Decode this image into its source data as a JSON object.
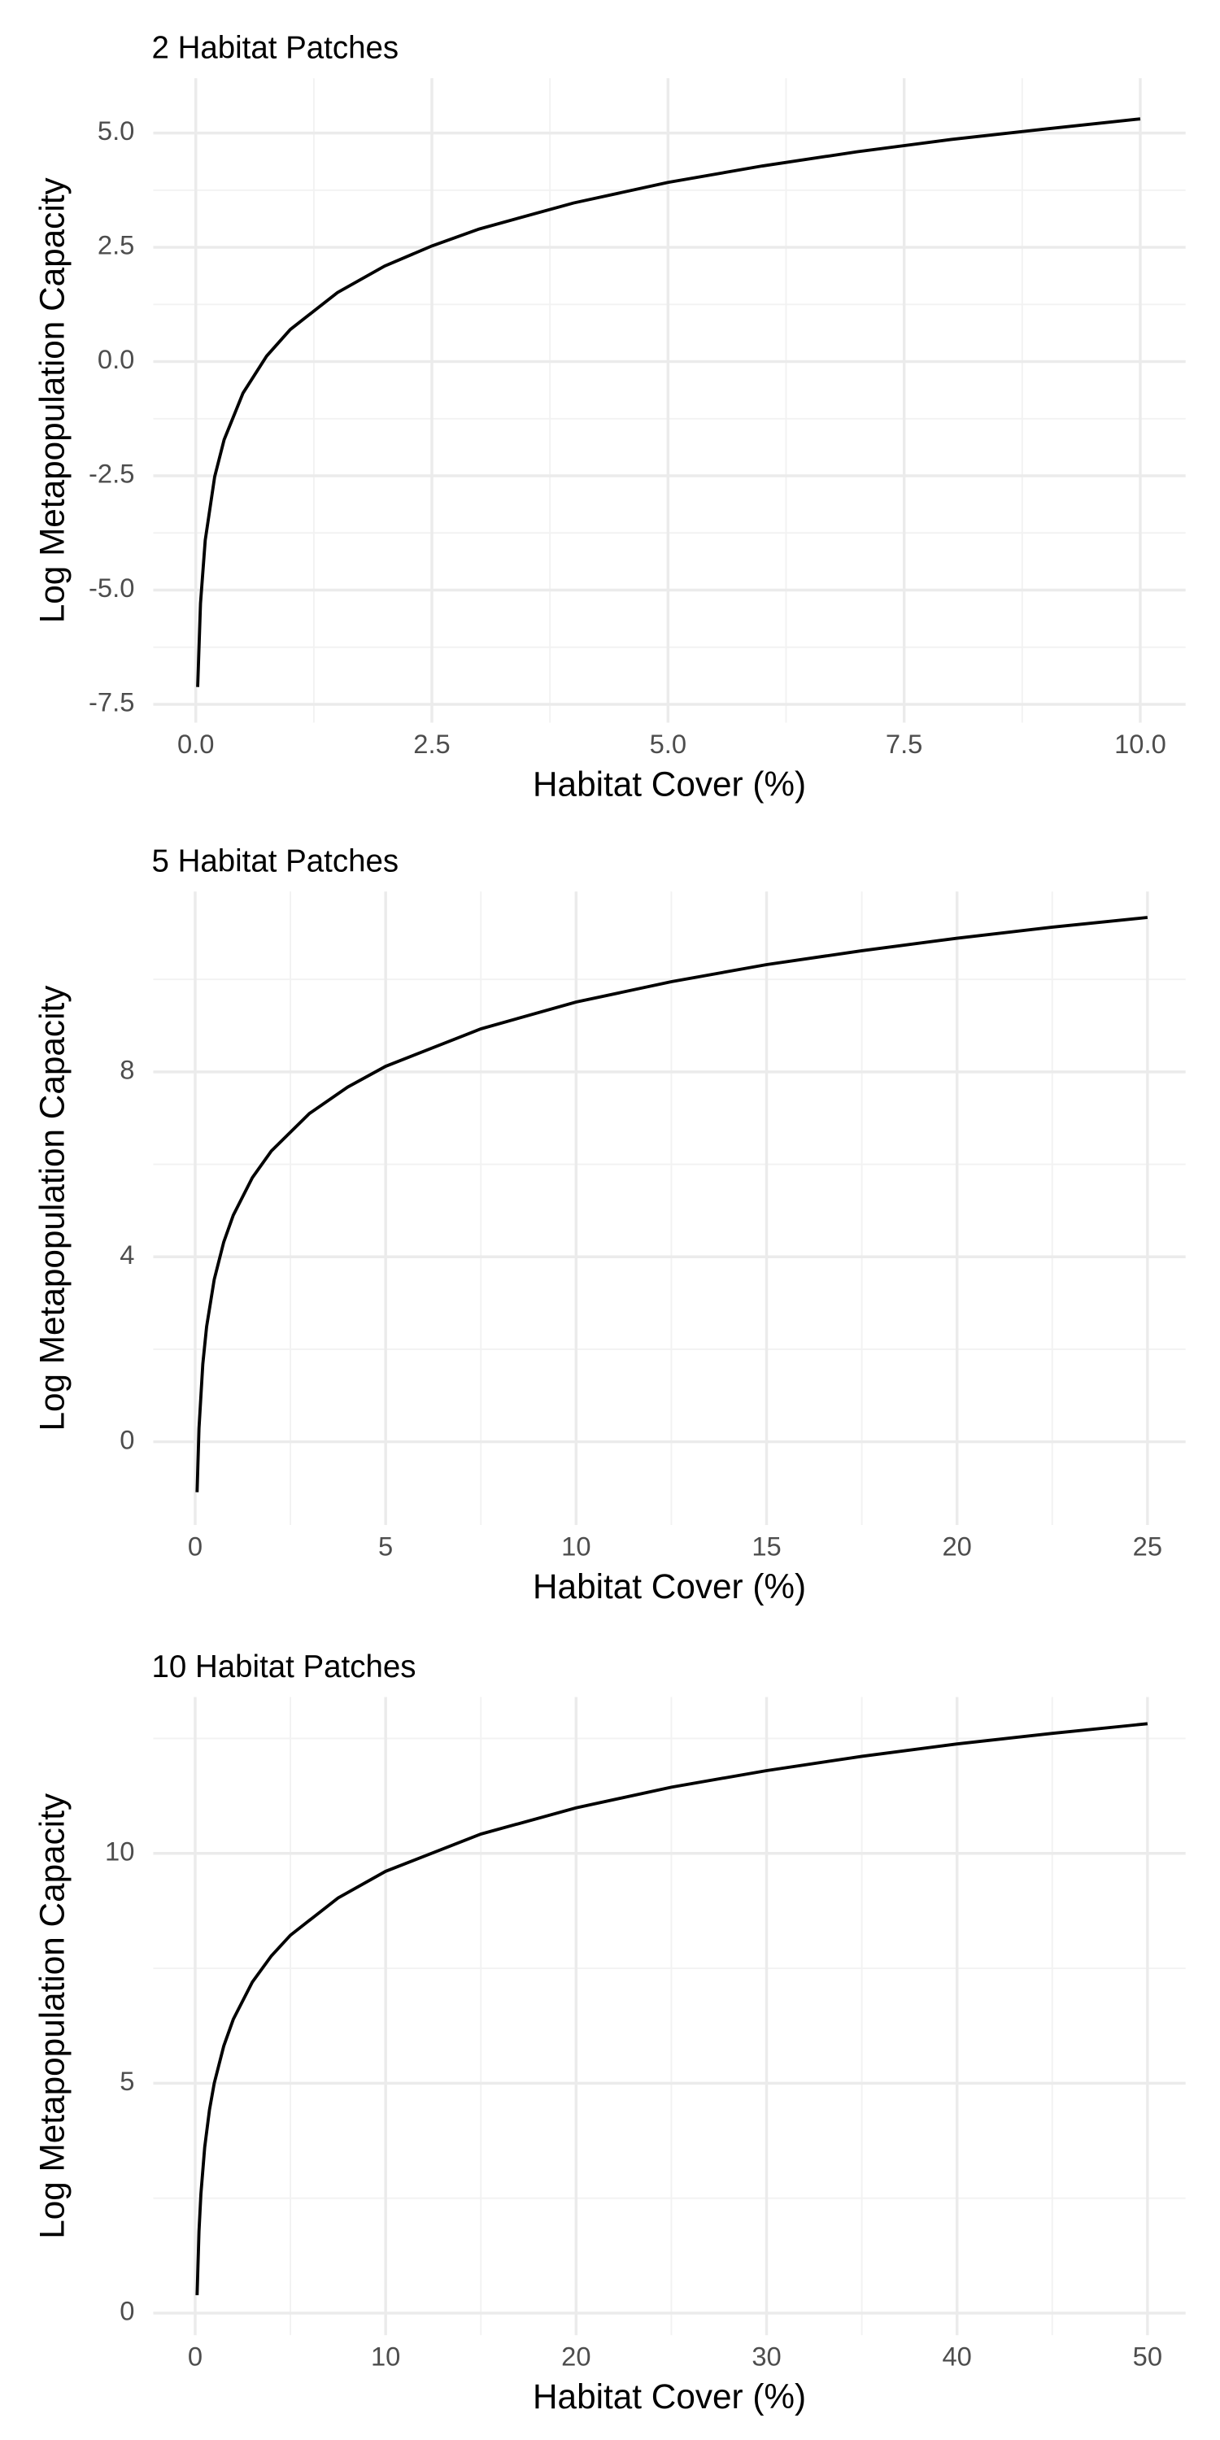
{
  "chart_data": [
    {
      "type": "line",
      "title": "2 Habitat Patches",
      "x_label": "Habitat Cover (%)",
      "y_label": "Log Metapopulation Capacity",
      "x": [
        0.02,
        0.05,
        0.1,
        0.2,
        0.3,
        0.5,
        0.75,
        1,
        1.5,
        2,
        2.5,
        3,
        4,
        5,
        6,
        7,
        8,
        9,
        10
      ],
      "values": [
        -7.12,
        -5.29,
        -3.91,
        -2.52,
        -1.71,
        -0.69,
        0.12,
        0.7,
        1.51,
        2.09,
        2.53,
        2.9,
        3.47,
        3.92,
        4.28,
        4.59,
        4.86,
        5.09,
        5.31
      ],
      "color": "#000000",
      "xlim": [
        -0.45,
        10.48
      ],
      "ylim": [
        -7.9,
        6.2
      ],
      "xticks": [
        {
          "value": 0,
          "label": "0.0"
        },
        2.5,
        {
          "value": 5,
          "label": "5.0"
        },
        7.5,
        {
          "value": 10,
          "label": "10.0"
        }
      ],
      "yticks": [
        -7.5,
        {
          "value": -5,
          "label": "-5.0"
        },
        -2.5,
        {
          "value": 0,
          "label": "0.0"
        },
        2.5,
        {
          "value": 5,
          "label": "5.0"
        }
      ],
      "grid": true
    },
    {
      "type": "line",
      "title": "5 Habitat Patches",
      "x_label": "Habitat Cover (%)",
      "y_label": "Log Metapopulation Capacity",
      "x": [
        0.05,
        0.1,
        0.2,
        0.3,
        0.5,
        0.75,
        1,
        1.5,
        2,
        3,
        4,
        5,
        7.5,
        10,
        12.5,
        15,
        17.5,
        20,
        22.5,
        25
      ],
      "values": [
        -1.09,
        0.29,
        1.68,
        2.49,
        3.51,
        4.32,
        4.9,
        5.71,
        6.29,
        7.1,
        7.67,
        8.12,
        8.93,
        9.51,
        9.95,
        10.32,
        10.62,
        10.89,
        11.13,
        11.34
      ],
      "color": "#000000",
      "xlim": [
        -1.1,
        26.0
      ],
      "ylim": [
        -1.8,
        11.9
      ],
      "xticks": [
        0,
        5,
        10,
        15,
        20,
        25
      ],
      "yticks": [
        0,
        4,
        8
      ],
      "grid": true
    },
    {
      "type": "line",
      "title": "10 Habitat Patches",
      "x_label": "Habitat Cover (%)",
      "y_label": "Log Metapopulation Capacity",
      "x": [
        0.1,
        0.2,
        0.3,
        0.5,
        0.75,
        1,
        1.5,
        2,
        3,
        4,
        5,
        7.5,
        10,
        15,
        20,
        25,
        30,
        35,
        40,
        45,
        50
      ],
      "values": [
        0.39,
        1.78,
        2.59,
        3.61,
        4.42,
        5.0,
        5.81,
        6.39,
        7.2,
        7.77,
        8.22,
        9.03,
        9.61,
        10.42,
        10.99,
        11.44,
        11.8,
        12.11,
        12.38,
        12.61,
        12.82
      ],
      "color": "#000000",
      "xlim": [
        -2.2,
        52.0
      ],
      "ylim": [
        -0.48,
        13.4
      ],
      "xticks": [
        0,
        10,
        20,
        30,
        40,
        50
      ],
      "yticks": [
        0,
        5,
        10
      ],
      "grid": true
    }
  ]
}
